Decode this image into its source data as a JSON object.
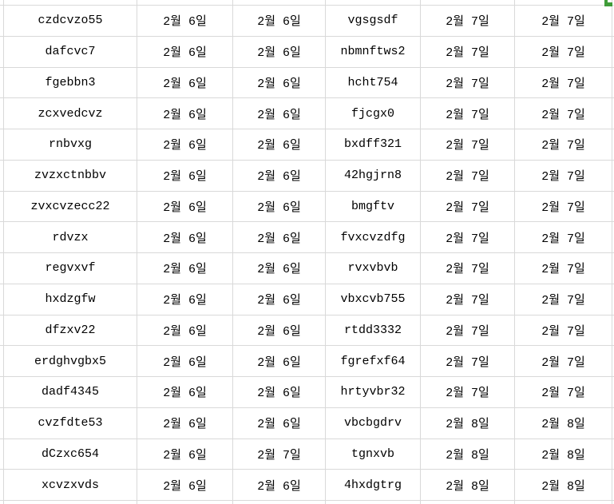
{
  "colors": {
    "background": "#ffffff",
    "grid_line": "#d9d9d9",
    "text": "#000000",
    "selection_marker": "#3f9c38"
  },
  "table": {
    "rows": [
      {
        "cells": [
          "czdcvzo55",
          "2월 6일",
          "2월 6일",
          "vgsgsdf",
          "2월 7일",
          "2월 7일"
        ]
      },
      {
        "cells": [
          "dafcvc7",
          "2월 6일",
          "2월 6일",
          "nbmnftws2",
          "2월 7일",
          "2월 7일"
        ]
      },
      {
        "cells": [
          "fgebbn3",
          "2월 6일",
          "2월 6일",
          "hcht754",
          "2월 7일",
          "2월 7일"
        ]
      },
      {
        "cells": [
          "zcxvedcvz",
          "2월 6일",
          "2월 6일",
          "fjcgx0",
          "2월 7일",
          "2월 7일"
        ]
      },
      {
        "cells": [
          "rnbvxg",
          "2월 6일",
          "2월 6일",
          "bxdff321",
          "2월 7일",
          "2월 7일"
        ]
      },
      {
        "cells": [
          "zvzxctnbbv",
          "2월 6일",
          "2월 6일",
          "42hgjrn8",
          "2월 7일",
          "2월 7일"
        ]
      },
      {
        "cells": [
          "zvxcvzecc22",
          "2월 6일",
          "2월 6일",
          "bmgftv",
          "2월 7일",
          "2월 7일"
        ]
      },
      {
        "cells": [
          "rdvzx",
          "2월 6일",
          "2월 6일",
          "fvxcvzdfg",
          "2월 7일",
          "2월 7일"
        ]
      },
      {
        "cells": [
          "regvxvf",
          "2월 6일",
          "2월 6일",
          "rvxvbvb",
          "2월 7일",
          "2월 7일"
        ]
      },
      {
        "cells": [
          "hxdzgfw",
          "2월 6일",
          "2월 6일",
          "vbxcvb755",
          "2월 7일",
          "2월 7일"
        ]
      },
      {
        "cells": [
          "dfzxv22",
          "2월 6일",
          "2월 6일",
          "rtdd3332",
          "2월 7일",
          "2월 7일"
        ]
      },
      {
        "cells": [
          "erdghvgbx5",
          "2월 6일",
          "2월 6일",
          "fgrefxf64",
          "2월 7일",
          "2월 7일"
        ]
      },
      {
        "cells": [
          "dadf4345",
          "2월 6일",
          "2월 6일",
          "hrtyvbr32",
          "2월 7일",
          "2월 7일"
        ]
      },
      {
        "cells": [
          "cvzfdte53",
          "2월 6일",
          "2월 6일",
          "vbcbgdrv",
          "2월 8일",
          "2월 8일"
        ]
      },
      {
        "cells": [
          "dCzxc654",
          "2월 6일",
          "2월 7일",
          "tgnxvb",
          "2월 8일",
          "2월 8일"
        ]
      },
      {
        "cells": [
          "xcvzxvds",
          "2월 6일",
          "2월 6일",
          "4hxdgtrg",
          "2월 8일",
          "2월 8일"
        ]
      }
    ]
  }
}
